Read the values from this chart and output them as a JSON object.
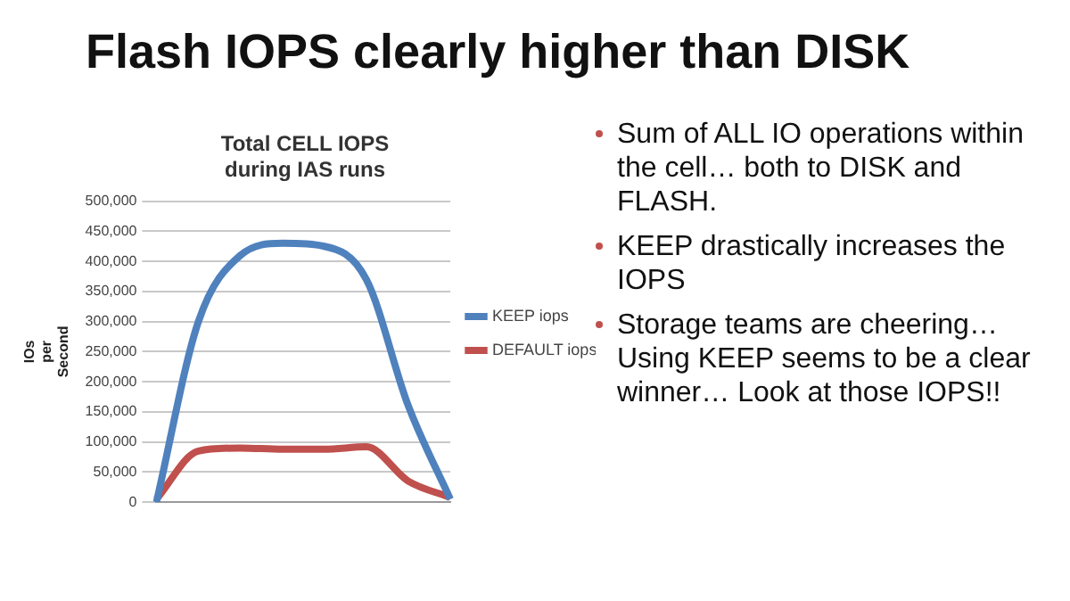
{
  "chart_data": {
    "type": "line",
    "title": "Flash IOPS clearly higher than DISK",
    "subtitle": "Total CELL IOPS\nduring IAS runs",
    "ylabel": "IOs\nper\nSecond",
    "categories": [
      null,
      null,
      null,
      null,
      null,
      null,
      null,
      null
    ],
    "series": [
      {
        "name": "KEEP iops",
        "color": "#4f81bd",
        "values": [
          0,
          300000,
          410000,
          430000,
          425000,
          370000,
          160000,
          5000
        ]
      },
      {
        "name": "DEFAULT iops",
        "color": "#c0504d",
        "values": [
          5000,
          85000,
          90000,
          88000,
          88000,
          92000,
          35000,
          8000
        ]
      }
    ],
    "ylim": [
      0,
      500000
    ],
    "yticks": [
      {
        "value": 0,
        "label": "0"
      },
      {
        "value": 50000,
        "label": "50,000"
      },
      {
        "value": 100000,
        "label": "100,000"
      },
      {
        "value": 150000,
        "label": "150,000"
      },
      {
        "value": 200000,
        "label": "200,000"
      },
      {
        "value": 250000,
        "label": "250,000"
      },
      {
        "value": 300000,
        "label": "300,000"
      },
      {
        "value": 350000,
        "label": "350,000"
      },
      {
        "value": 400000,
        "label": "400,000"
      },
      {
        "value": 450000,
        "label": "450,000"
      },
      {
        "value": 500000,
        "label": "500,000"
      }
    ],
    "grid": "y",
    "legend": "right",
    "marker": "none",
    "line_style": "solid",
    "annotations": [
      "Sum of ALL IO operations within the cell… both to DISK and FLASH.",
      "KEEP drastically increases the IOPS",
      "Storage teams are cheering… Using KEEP seems to be a clear winner… Look at those IOPS!!"
    ]
  }
}
